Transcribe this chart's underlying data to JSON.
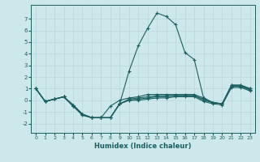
{
  "xlabel": "Humidex (Indice chaleur)",
  "ylabel": "",
  "xlim": [
    -0.5,
    23.5
  ],
  "ylim": [
    -2.8,
    8.2
  ],
  "yticks": [
    -2,
    -1,
    0,
    1,
    2,
    3,
    4,
    5,
    6,
    7
  ],
  "xticks": [
    0,
    1,
    2,
    3,
    4,
    5,
    6,
    7,
    8,
    9,
    10,
    11,
    12,
    13,
    14,
    15,
    16,
    17,
    18,
    19,
    20,
    21,
    22,
    23
  ],
  "bg_color": "#cce8eb",
  "line_color": "#1a5f5f",
  "grid_color": "#b8d8db",
  "lines": [
    {
      "x": [
        0,
        1,
        2,
        3,
        4,
        5,
        6,
        7,
        8,
        9,
        10,
        11,
        12,
        13,
        14,
        15,
        16,
        17,
        18,
        19,
        20,
        21,
        22,
        23
      ],
      "y": [
        1.0,
        -0.1,
        0.1,
        0.3,
        -0.4,
        -1.2,
        -1.5,
        -1.5,
        -1.5,
        -0.3,
        2.5,
        4.7,
        6.2,
        7.5,
        7.2,
        6.5,
        4.1,
        3.5,
        0.2,
        -0.2,
        -0.3,
        1.3,
        1.3,
        1.0
      ]
    },
    {
      "x": [
        0,
        1,
        2,
        3,
        4,
        5,
        6,
        7,
        8,
        9,
        10,
        11,
        12,
        13,
        14,
        15,
        16,
        17,
        18,
        19,
        20,
        21,
        22,
        23
      ],
      "y": [
        1.0,
        -0.1,
        0.1,
        0.3,
        -0.4,
        -1.2,
        -1.5,
        -1.5,
        -0.5,
        0.0,
        0.2,
        0.3,
        0.5,
        0.5,
        0.5,
        0.5,
        0.5,
        0.5,
        0.2,
        -0.2,
        -0.3,
        1.3,
        1.3,
        1.0
      ]
    },
    {
      "x": [
        0,
        1,
        2,
        3,
        4,
        5,
        6,
        7,
        8,
        9,
        10,
        11,
        12,
        13,
        14,
        15,
        16,
        17,
        18,
        19,
        20,
        21,
        22,
        23
      ],
      "y": [
        1.0,
        -0.1,
        0.1,
        0.3,
        -0.5,
        -1.2,
        -1.5,
        -1.5,
        -1.5,
        -0.3,
        0.1,
        0.2,
        0.3,
        0.4,
        0.4,
        0.4,
        0.4,
        0.4,
        0.1,
        -0.2,
        -0.3,
        1.2,
        1.2,
        0.9
      ]
    },
    {
      "x": [
        0,
        1,
        2,
        3,
        4,
        5,
        6,
        7,
        8,
        9,
        10,
        11,
        12,
        13,
        14,
        15,
        16,
        17,
        18,
        19,
        20,
        21,
        22,
        23
      ],
      "y": [
        1.0,
        -0.1,
        0.1,
        0.3,
        -0.5,
        -1.2,
        -1.5,
        -1.5,
        -1.5,
        -0.3,
        0.0,
        0.1,
        0.2,
        0.3,
        0.3,
        0.4,
        0.4,
        0.4,
        0.0,
        -0.2,
        -0.3,
        1.2,
        1.2,
        0.9
      ]
    },
    {
      "x": [
        0,
        1,
        2,
        3,
        4,
        5,
        6,
        7,
        8,
        9,
        10,
        11,
        12,
        13,
        14,
        15,
        16,
        17,
        18,
        19,
        20,
        21,
        22,
        23
      ],
      "y": [
        1.0,
        -0.1,
        0.1,
        0.3,
        -0.5,
        -1.3,
        -1.5,
        -1.5,
        -1.5,
        -0.3,
        0.0,
        0.0,
        0.1,
        0.2,
        0.2,
        0.3,
        0.3,
        0.3,
        -0.1,
        -0.3,
        -0.4,
        1.1,
        1.1,
        0.8
      ]
    }
  ]
}
